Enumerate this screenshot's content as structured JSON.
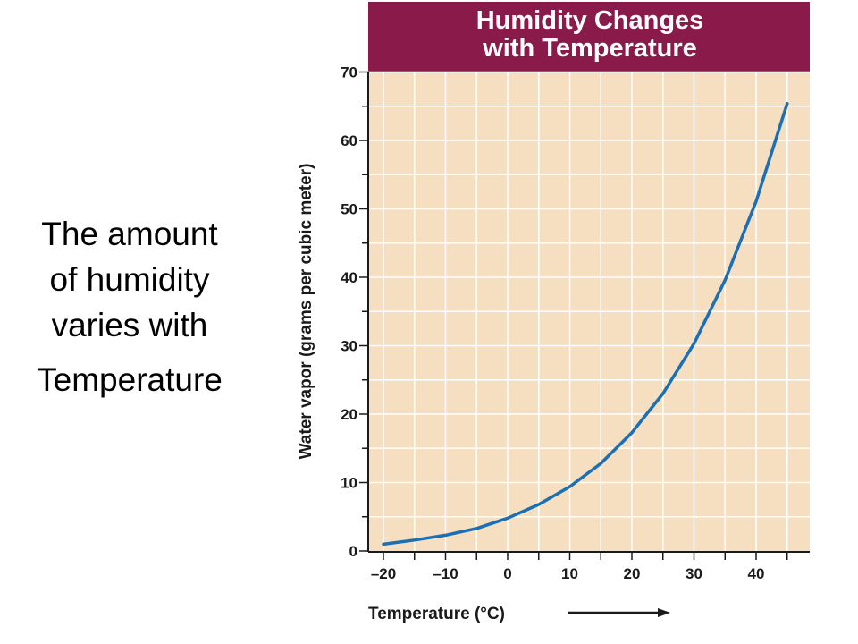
{
  "caption": {
    "lines": [
      "The amount",
      "of humidity",
      "varies with",
      "Temperature"
    ]
  },
  "chart_data": {
    "type": "line",
    "title_lines": [
      "Humidity Changes",
      "with Temperature"
    ],
    "xlabel": "Temperature (°C)",
    "ylabel": "Water vapor (grams per cubic meter)",
    "xlim": [
      -20,
      45
    ],
    "ylim": [
      0,
      70
    ],
    "x_ticks": [
      -20,
      -10,
      0,
      10,
      20,
      30,
      40
    ],
    "x_tick_labels": [
      "–20",
      "–10",
      "0",
      "10",
      "20",
      "30",
      "40"
    ],
    "y_ticks": [
      0,
      10,
      20,
      30,
      40,
      50,
      60,
      70
    ],
    "y_tick_labels": [
      "0",
      "10",
      "20",
      "30",
      "40",
      "50",
      "60",
      "70"
    ],
    "grid": true,
    "series": [
      {
        "x": [
          -20,
          -15,
          -10,
          -5,
          0,
          5,
          10,
          15,
          20,
          25,
          30,
          35,
          40,
          45
        ],
        "values": [
          1.0,
          1.6,
          2.3,
          3.3,
          4.8,
          6.8,
          9.4,
          12.8,
          17.3,
          23.0,
          30.3,
          39.6,
          51.1,
          65.4
        ]
      }
    ],
    "colors": {
      "title_bg": "#8a1a4a",
      "plot_bg": "#f5dfc0",
      "grid": "#ffffff",
      "line": "#1a6fb5",
      "axis": "#1a1a1a"
    }
  }
}
